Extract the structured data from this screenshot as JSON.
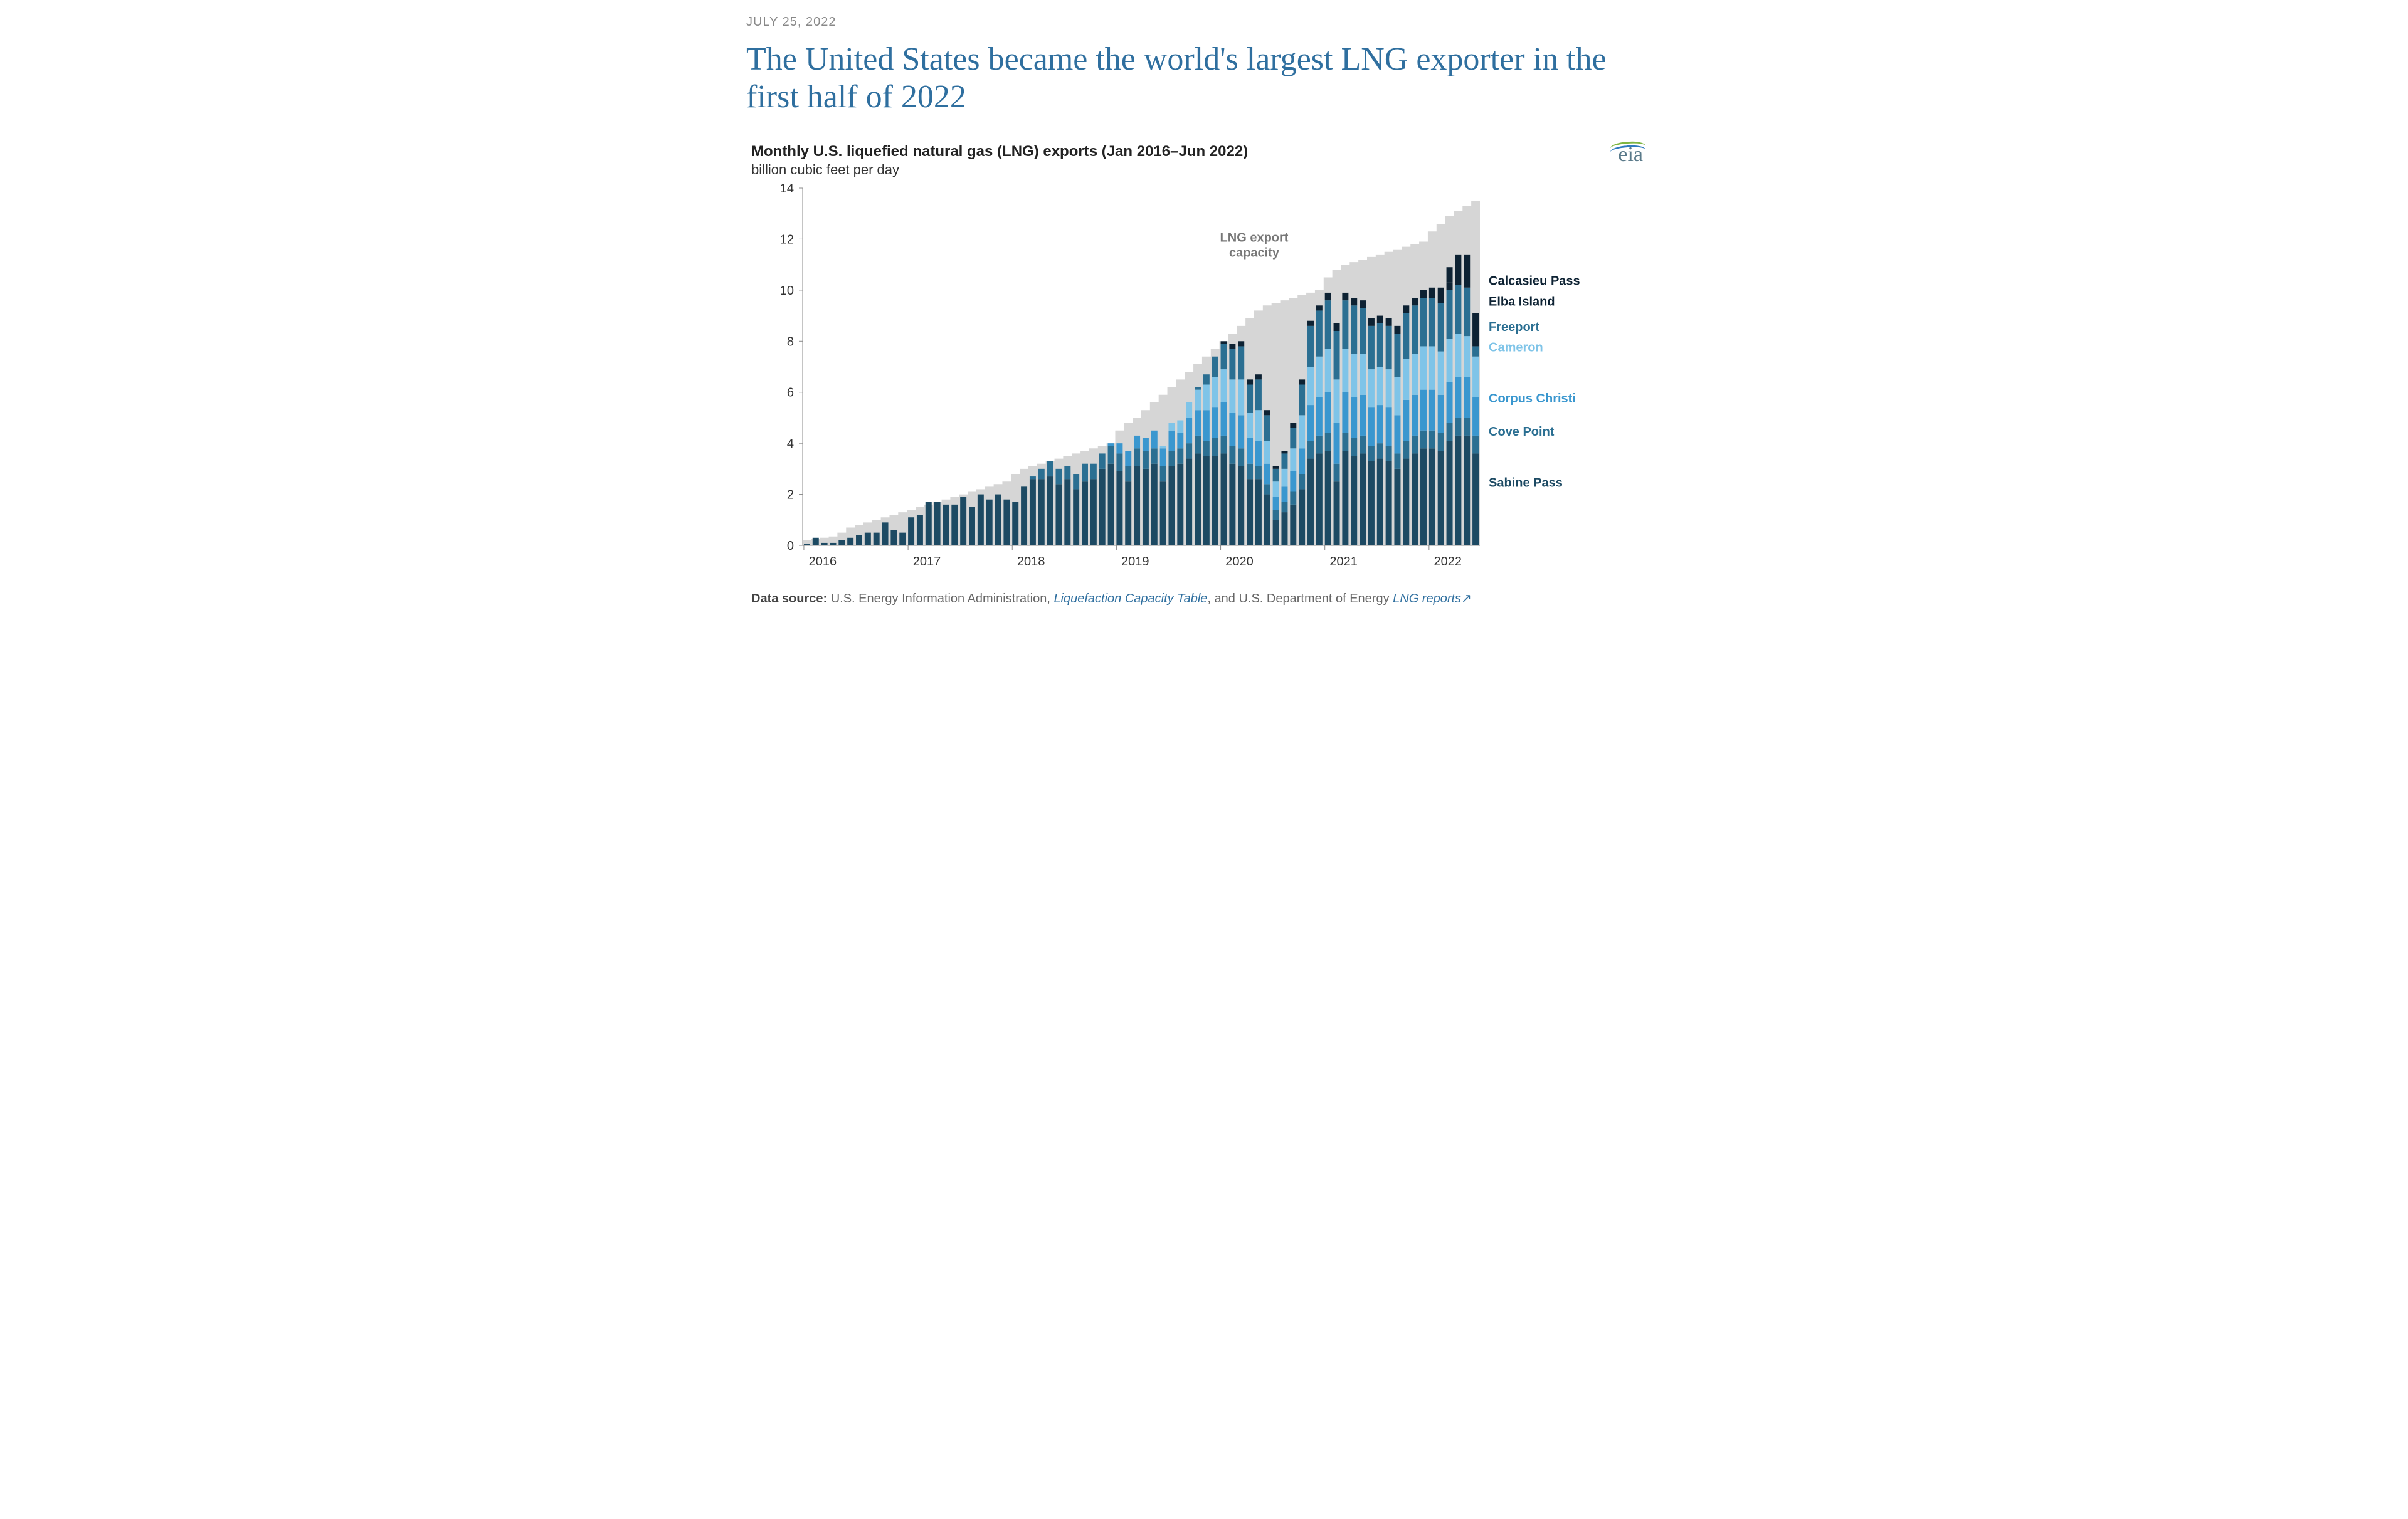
{
  "date_line": "JULY 25, 2022",
  "article_title": "The United States became the world's largest LNG exporter in the first half of 2022",
  "logo_text": "eia",
  "chart": {
    "type": "stacked-bar-with-area",
    "title": "Monthly U.S. liquefied natural gas (LNG) exports (Jan 2016–Jun 2022)",
    "subtitle": "billion cubic feet per day",
    "y": {
      "min": 0,
      "max": 14,
      "step": 2,
      "ticks": [
        0,
        2,
        4,
        6,
        8,
        10,
        12,
        14
      ]
    },
    "x": {
      "year_labels": [
        "2016",
        "2017",
        "2018",
        "2019",
        "2020",
        "2021",
        "2022"
      ],
      "months_per_year": 12,
      "n_bars": 78
    },
    "background_color": "#ffffff",
    "plot_grid_color": "#d0d0d0",
    "capacity_area_color": "#d6d6d6",
    "capacity_label": "LNG export capacity",
    "series": [
      {
        "key": "sabine",
        "label": "Sabine Pass",
        "color": "#1d4a63"
      },
      {
        "key": "cove",
        "label": "Cove Point",
        "color": "#2b6f92"
      },
      {
        "key": "corpus",
        "label": "Corpus Christi",
        "color": "#3a97cf"
      },
      {
        "key": "cameron",
        "label": "Cameron",
        "color": "#7fc4e8"
      },
      {
        "key": "freeport",
        "label": "Freeport",
        "color": "#2b6f92"
      },
      {
        "key": "elba",
        "label": "Elba Island",
        "color": "#0d2233"
      },
      {
        "key": "calcasieu",
        "label": "Calcasieu Pass",
        "color": "#0d2233"
      }
    ],
    "capacity": [
      0.2,
      0.25,
      0.3,
      0.35,
      0.5,
      0.7,
      0.8,
      0.9,
      1.0,
      1.1,
      1.2,
      1.3,
      1.4,
      1.5,
      1.6,
      1.7,
      1.8,
      1.9,
      2.0,
      2.1,
      2.2,
      2.3,
      2.4,
      2.5,
      2.8,
      3.0,
      3.1,
      3.2,
      3.3,
      3.4,
      3.5,
      3.6,
      3.7,
      3.8,
      3.9,
      4.0,
      4.5,
      4.8,
      5.0,
      5.3,
      5.6,
      5.9,
      6.2,
      6.5,
      6.8,
      7.1,
      7.4,
      7.7,
      8.0,
      8.3,
      8.6,
      8.9,
      9.2,
      9.4,
      9.5,
      9.6,
      9.7,
      9.8,
      9.9,
      10.0,
      10.5,
      10.8,
      11.0,
      11.1,
      11.2,
      11.3,
      11.4,
      11.5,
      11.6,
      11.7,
      11.8,
      11.9,
      12.3,
      12.6,
      12.9,
      13.1,
      13.3,
      13.5
    ],
    "data": {
      "sabine": [
        0.05,
        0.3,
        0.1,
        0.1,
        0.2,
        0.3,
        0.4,
        0.5,
        0.5,
        0.9,
        0.6,
        0.5,
        1.1,
        1.2,
        1.7,
        1.7,
        1.6,
        1.6,
        1.9,
        1.5,
        2.0,
        1.8,
        2.0,
        1.8,
        1.7,
        2.3,
        2.6,
        2.6,
        2.7,
        2.4,
        2.6,
        2.2,
        2.5,
        2.6,
        3.0,
        3.2,
        2.9,
        2.5,
        3.1,
        3.0,
        3.2,
        2.5,
        3.1,
        3.2,
        3.4,
        3.6,
        3.5,
        3.5,
        3.6,
        3.2,
        3.1,
        2.6,
        2.6,
        2.0,
        1.0,
        1.3,
        1.6,
        2.2,
        3.4,
        3.6,
        3.7,
        2.5,
        3.7,
        3.5,
        3.6,
        3.3,
        3.4,
        3.3,
        3.0,
        3.4,
        3.6,
        3.8,
        3.8,
        3.7,
        4.1,
        4.3,
        4.3,
        3.6
      ],
      "cove": [
        0,
        0,
        0,
        0,
        0,
        0,
        0,
        0,
        0,
        0,
        0,
        0,
        0,
        0,
        0,
        0,
        0,
        0,
        0,
        0,
        0,
        0,
        0,
        0,
        0,
        0,
        0.1,
        0.4,
        0.6,
        0.6,
        0.5,
        0.6,
        0.7,
        0.6,
        0.6,
        0.7,
        0.7,
        0.6,
        0.7,
        0.7,
        0.6,
        0.6,
        0.6,
        0.6,
        0.6,
        0.7,
        0.6,
        0.7,
        0.7,
        0.7,
        0.7,
        0.6,
        0.5,
        0.4,
        0.4,
        0.4,
        0.5,
        0.6,
        0.7,
        0.7,
        0.7,
        0.7,
        0.7,
        0.7,
        0.7,
        0.6,
        0.6,
        0.6,
        0.6,
        0.7,
        0.7,
        0.7,
        0.7,
        0.7,
        0.7,
        0.7,
        0.7,
        0.7
      ],
      "corpus": [
        0,
        0,
        0,
        0,
        0,
        0,
        0,
        0,
        0,
        0,
        0,
        0,
        0,
        0,
        0,
        0,
        0,
        0,
        0,
        0,
        0,
        0,
        0,
        0,
        0,
        0,
        0,
        0,
        0,
        0,
        0,
        0,
        0,
        0,
        0,
        0.1,
        0.4,
        0.6,
        0.5,
        0.5,
        0.7,
        0.7,
        0.8,
        0.6,
        1.0,
        1.0,
        1.2,
        1.2,
        1.3,
        1.3,
        1.3,
        1.0,
        1.0,
        0.8,
        0.5,
        0.6,
        0.8,
        1.0,
        1.4,
        1.5,
        1.6,
        1.6,
        1.6,
        1.6,
        1.6,
        1.5,
        1.5,
        1.5,
        1.5,
        1.6,
        1.6,
        1.6,
        1.6,
        1.5,
        1.6,
        1.6,
        1.6,
        1.5
      ],
      "cameron": [
        0,
        0,
        0,
        0,
        0,
        0,
        0,
        0,
        0,
        0,
        0,
        0,
        0,
        0,
        0,
        0,
        0,
        0,
        0,
        0,
        0,
        0,
        0,
        0,
        0,
        0,
        0,
        0,
        0,
        0,
        0,
        0,
        0,
        0,
        0,
        0,
        0,
        0,
        0,
        0,
        0,
        0.1,
        0.3,
        0.5,
        0.6,
        0.8,
        1.0,
        1.2,
        1.3,
        1.3,
        1.4,
        1.0,
        1.2,
        0.9,
        0.6,
        0.7,
        0.9,
        1.3,
        1.5,
        1.6,
        1.7,
        1.7,
        1.7,
        1.7,
        1.6,
        1.5,
        1.5,
        1.5,
        1.5,
        1.6,
        1.6,
        1.7,
        1.7,
        1.7,
        1.7,
        1.7,
        1.6,
        1.6
      ],
      "freeport": [
        0,
        0,
        0,
        0,
        0,
        0,
        0,
        0,
        0,
        0,
        0,
        0,
        0,
        0,
        0,
        0,
        0,
        0,
        0,
        0,
        0,
        0,
        0,
        0,
        0,
        0,
        0,
        0,
        0,
        0,
        0,
        0,
        0,
        0,
        0,
        0,
        0,
        0,
        0,
        0,
        0,
        0,
        0,
        0,
        0,
        0.1,
        0.4,
        0.8,
        1.0,
        1.2,
        1.3,
        1.1,
        1.2,
        1.0,
        0.5,
        0.6,
        0.8,
        1.2,
        1.6,
        1.8,
        1.9,
        1.9,
        1.9,
        1.9,
        1.8,
        1.7,
        1.7,
        1.7,
        1.7,
        1.8,
        1.9,
        1.9,
        1.9,
        1.9,
        1.9,
        1.9,
        1.9,
        0.4
      ],
      "elba": [
        0,
        0,
        0,
        0,
        0,
        0,
        0,
        0,
        0,
        0,
        0,
        0,
        0,
        0,
        0,
        0,
        0,
        0,
        0,
        0,
        0,
        0,
        0,
        0,
        0,
        0,
        0,
        0,
        0,
        0,
        0,
        0,
        0,
        0,
        0,
        0,
        0,
        0,
        0,
        0,
        0,
        0,
        0,
        0,
        0,
        0,
        0,
        0,
        0.1,
        0.2,
        0.2,
        0.2,
        0.2,
        0.2,
        0.1,
        0.1,
        0.2,
        0.2,
        0.2,
        0.2,
        0.3,
        0.3,
        0.3,
        0.3,
        0.3,
        0.3,
        0.3,
        0.3,
        0.3,
        0.3,
        0.3,
        0.3,
        0.3,
        0.3,
        0.3,
        0.3,
        0.3,
        0.3
      ],
      "calcasieu": [
        0,
        0,
        0,
        0,
        0,
        0,
        0,
        0,
        0,
        0,
        0,
        0,
        0,
        0,
        0,
        0,
        0,
        0,
        0,
        0,
        0,
        0,
        0,
        0,
        0,
        0,
        0,
        0,
        0,
        0,
        0,
        0,
        0,
        0,
        0,
        0,
        0,
        0,
        0,
        0,
        0,
        0,
        0,
        0,
        0,
        0,
        0,
        0,
        0,
        0,
        0,
        0,
        0,
        0,
        0,
        0,
        0,
        0,
        0,
        0,
        0,
        0,
        0,
        0,
        0,
        0,
        0,
        0,
        0,
        0,
        0,
        0,
        0.1,
        0.3,
        0.6,
        0.9,
        1.0,
        1.0
      ]
    },
    "legend_y_anchors": {
      "calcasieu": 10.2,
      "elba": 9.4,
      "freeport": 8.4,
      "cameron": 7.6,
      "corpus": 5.6,
      "cove": 4.3,
      "sabine": 2.3
    }
  },
  "source": {
    "prefix": "Data source:",
    "text1": " U.S. Energy Information Administration, ",
    "link1": "Liquefaction Capacity Table",
    "text2": ", and U.S. Department of Energy ",
    "link2": "LNG reports",
    "ext_icon": "↗"
  }
}
